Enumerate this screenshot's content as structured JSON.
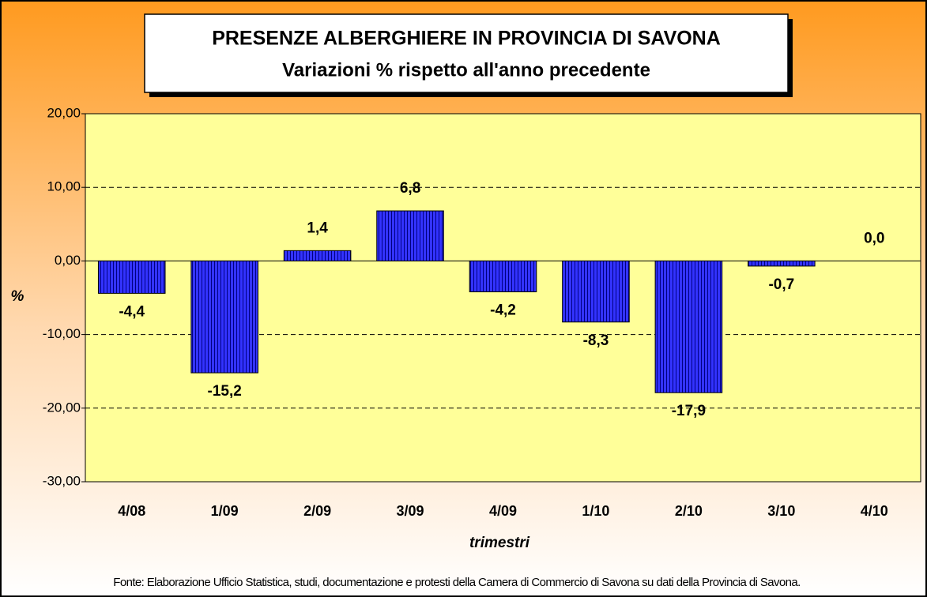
{
  "chart_data": {
    "type": "bar",
    "title": "PRESENZE ALBERGHIERE IN PROVINCIA DI SAVONA",
    "subtitle": "Variazioni % rispetto all'anno precedente",
    "x_label": "trimestri",
    "y_label": "%",
    "source": "Fonte: Elaborazione Ufficio Statistica, studi, documentazione e protesti della Camera di Commercio di Savona su dati della Provincia di Savona.",
    "categories": [
      "4/08",
      "1/09",
      "2/09",
      "3/09",
      "4/09",
      "1/10",
      "2/10",
      "3/10",
      "4/10"
    ],
    "values": [
      -4.4,
      -15.2,
      1.4,
      6.8,
      -4.2,
      -8.3,
      -17.9,
      -0.7,
      0.0
    ],
    "value_labels": [
      "-4,4",
      "-15,2",
      "1,4",
      "6,8",
      "-4,2",
      "-8,3",
      "-17,9",
      "-0,7",
      "0,0"
    ],
    "color": "#3333ff",
    "ylim": [
      -30,
      20
    ],
    "yticks": [
      {
        "value": -30,
        "label": "-30,00"
      },
      {
        "value": -20,
        "label": "-20,00"
      },
      {
        "value": -10,
        "label": "-10,00"
      },
      {
        "value": 0,
        "label": "0,00"
      },
      {
        "value": 10,
        "label": "10,00"
      },
      {
        "value": 20,
        "label": "20,00"
      }
    ],
    "grid": true
  }
}
